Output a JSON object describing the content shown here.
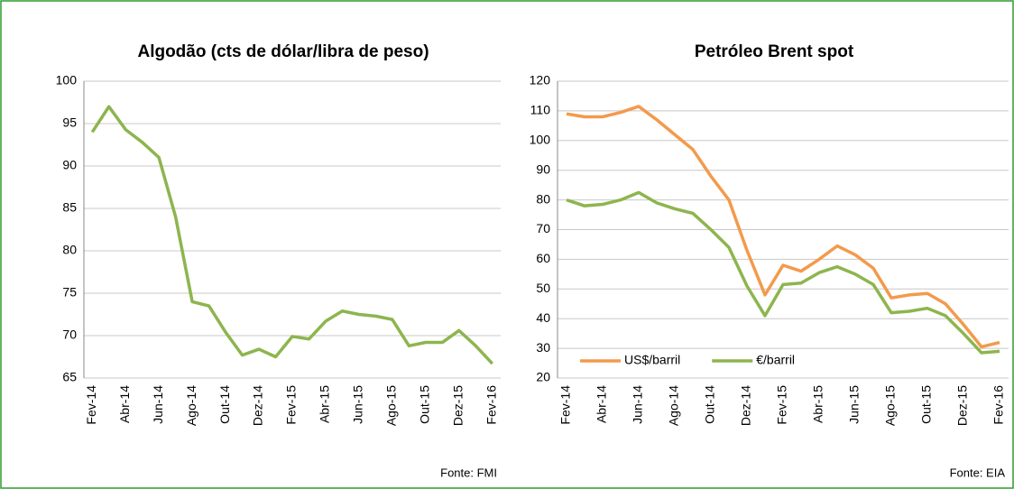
{
  "chart_data": [
    {
      "type": "line",
      "title": "Algodão (cts de dólar/libra de peso)",
      "categories": [
        "Fev-14",
        null,
        "Abr-14",
        null,
        "Jun-14",
        null,
        "Ago-14",
        null,
        "Out-14",
        null,
        "Dez-14",
        null,
        "Fev-15",
        null,
        "Abr-15",
        null,
        "Jun-15",
        null,
        "Ago-15",
        null,
        "Out-15",
        null,
        "Dez-15",
        null,
        "Fev-16"
      ],
      "values": [
        94,
        97,
        94.3,
        92.8,
        91,
        84,
        74,
        73.5,
        70.4,
        67.7,
        68.4,
        67.5,
        69.9,
        69.6,
        71.7,
        72.9,
        72.5,
        72.3,
        71.9,
        68.8,
        69.2,
        69.2,
        70.6,
        68.8,
        66.7
      ],
      "color": "#8db54e",
      "ylim": [
        65,
        100
      ],
      "yticks": [
        65,
        70,
        75,
        80,
        85,
        90,
        95,
        100
      ],
      "grid": true,
      "source": "Fonte: FMI"
    },
    {
      "type": "line",
      "title": "Petróleo Brent spot",
      "categories": [
        "Fev-14",
        null,
        "Abr-14",
        null,
        "Jun-14",
        null,
        "Ago-14",
        null,
        "Out-14",
        null,
        "Dez-14",
        null,
        "Fev-15",
        null,
        "Abr-15",
        null,
        "Jun-15",
        null,
        "Ago-15",
        null,
        "Out-15",
        null,
        "Dez-15",
        null,
        "Fev-16"
      ],
      "series": [
        {
          "name": "US$/barril",
          "color": "#f39a4c",
          "values": [
            109,
            108,
            108,
            109.5,
            111.5,
            107,
            102,
            97,
            88,
            80,
            63,
            48,
            58,
            56,
            60,
            64.5,
            61.5,
            57,
            47,
            48,
            48.5,
            45,
            38,
            30.5,
            32
          ]
        },
        {
          "name": "€/barril",
          "color": "#8db54e",
          "values": [
            80,
            78,
            78.5,
            80,
            82.5,
            79,
            77,
            75.5,
            70,
            64,
            51,
            41,
            51.5,
            52,
            55.5,
            57.5,
            55,
            51.5,
            42,
            42.5,
            43.5,
            41,
            35,
            28.5,
            29
          ]
        }
      ],
      "ylim": [
        20,
        120
      ],
      "yticks": [
        20,
        30,
        40,
        50,
        60,
        70,
        80,
        90,
        100,
        110,
        120
      ],
      "grid": true,
      "legend": "lower left",
      "source": "Fonte: EIA"
    }
  ]
}
